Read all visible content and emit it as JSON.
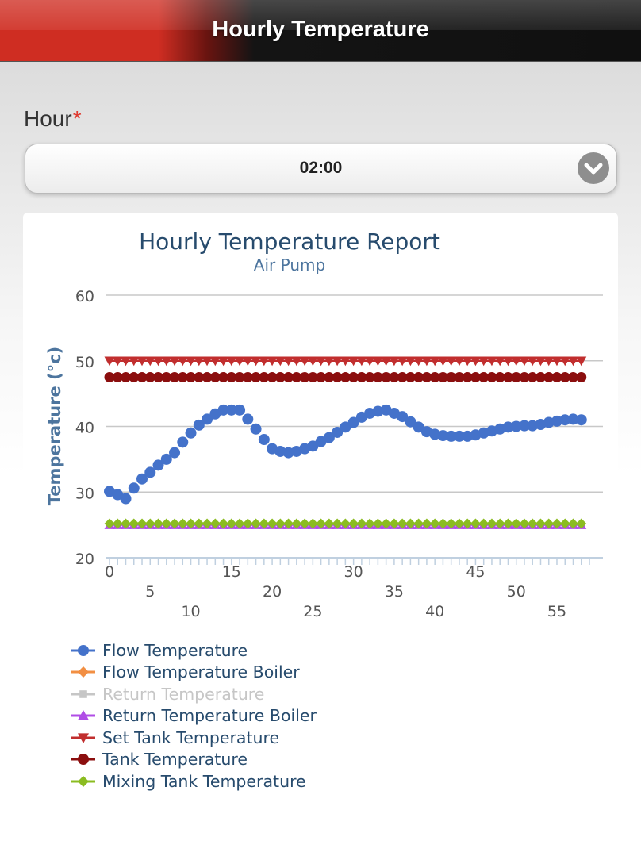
{
  "header": {
    "title": "Hourly Temperature"
  },
  "form": {
    "hour_label": "Hour",
    "required_mark": "*",
    "hour_value": "02:00"
  },
  "chart_data": {
    "type": "line",
    "title": "Hourly Temperature Report",
    "subtitle": "Air Pump",
    "ylabel": "Temperature (°c)",
    "xlabel": "",
    "ylim": [
      20,
      60
    ],
    "xlim": [
      0,
      59
    ],
    "yticks": [
      20,
      30,
      40,
      50,
      60
    ],
    "xticks": [
      0,
      5,
      10,
      15,
      20,
      25,
      30,
      35,
      40,
      45,
      50,
      55
    ],
    "grid": true,
    "legend_position": "bottom",
    "series": [
      {
        "name": "Flow Temperature",
        "color": "#4472ca",
        "marker": "circle",
        "x": [
          0,
          1,
          2,
          3,
          4,
          5,
          6,
          7,
          8,
          9,
          10,
          11,
          12,
          13,
          14,
          15,
          16,
          17,
          18,
          19,
          20,
          21,
          22,
          23,
          24,
          25,
          26,
          27,
          28,
          29,
          30,
          31,
          32,
          33,
          34,
          35,
          36,
          37,
          38,
          39,
          40,
          41,
          42,
          43,
          44,
          45,
          46,
          47,
          48,
          49,
          50,
          51,
          52,
          53,
          54,
          55,
          56,
          57,
          58
        ],
        "values": [
          30.1,
          29.6,
          29.0,
          30.6,
          32.0,
          33.0,
          34.1,
          35.0,
          36.0,
          37.6,
          39.0,
          40.2,
          41.1,
          41.9,
          42.5,
          42.5,
          42.5,
          41.1,
          39.6,
          38.0,
          36.6,
          36.2,
          36.0,
          36.2,
          36.6,
          37.0,
          37.7,
          38.3,
          39.1,
          39.9,
          40.6,
          41.4,
          42.0,
          42.3,
          42.5,
          42.0,
          41.5,
          40.7,
          39.9,
          39.2,
          38.8,
          38.6,
          38.5,
          38.5,
          38.5,
          38.7,
          39.0,
          39.3,
          39.6,
          39.9,
          40.0,
          40.1,
          40.1,
          40.3,
          40.6,
          40.8,
          41.0,
          41.1,
          41.0
        ]
      },
      {
        "name": "Flow Temperature Boiler",
        "color": "#f28f43",
        "marker": "diamond",
        "values": []
      },
      {
        "name": "Return Temperature",
        "color": "#c6c6c6",
        "marker": "square",
        "hidden": true,
        "values": []
      },
      {
        "name": "Return Temperature Boiler",
        "color": "#b04de6",
        "marker": "triangle",
        "constant": 25.0
      },
      {
        "name": "Set Tank Temperature",
        "color": "#c12e2e",
        "marker": "triangle-down",
        "constant": 50.0
      },
      {
        "name": "Tank Temperature",
        "color": "#8b0e0e",
        "marker": "circle",
        "constant": 47.5
      },
      {
        "name": "Mixing Tank Temperature",
        "color": "#8bbc21",
        "marker": "diamond",
        "constant": 25.2
      }
    ]
  }
}
